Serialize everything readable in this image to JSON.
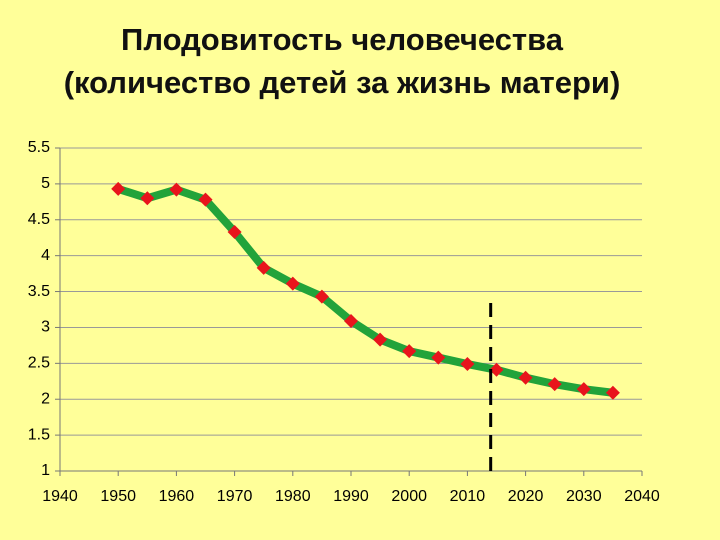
{
  "chart_data": {
    "type": "line",
    "title": [
      "Плодовитость человечества",
      "(количество детей за жизнь матери)"
    ],
    "x": [
      1950,
      1955,
      1960,
      1965,
      1970,
      1975,
      1980,
      1985,
      1990,
      1995,
      2000,
      2005,
      2010,
      2015,
      2020,
      2025,
      2030,
      2035
    ],
    "series": [
      {
        "color": "#22a33a",
        "marker_color": "#e8141c",
        "values": [
          4.93,
          4.8,
          4.92,
          4.78,
          4.33,
          3.83,
          3.61,
          3.43,
          3.09,
          2.83,
          2.67,
          2.58,
          2.49,
          2.41,
          2.3,
          2.21,
          2.14,
          2.09
        ]
      }
    ],
    "xlim": [
      1940,
      2040
    ],
    "xticks": [
      1940,
      1950,
      1960,
      1970,
      1980,
      1990,
      2000,
      2010,
      2020,
      2030,
      2040
    ],
    "ylim": [
      1,
      5.5
    ],
    "yticks": [
      1,
      1.5,
      2,
      2.5,
      3,
      3.5,
      4,
      4.5,
      5,
      5.5
    ],
    "grid": true,
    "vline": {
      "x": 2014,
      "y": [
        1,
        3.38
      ]
    }
  }
}
